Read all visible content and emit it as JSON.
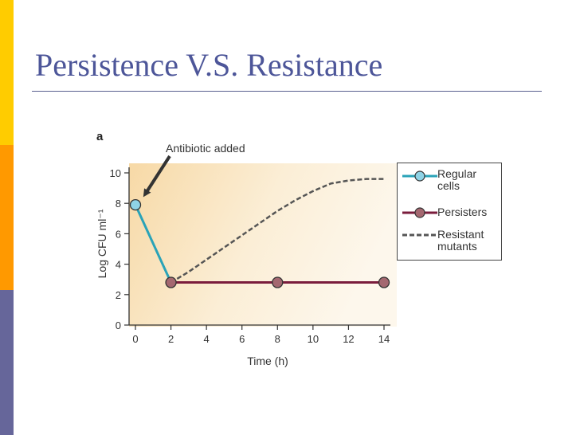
{
  "slide": {
    "title": "Persistence V.S. Resistance",
    "accent_colors": [
      "#ffcc00",
      "#ff9900",
      "#66669a"
    ]
  },
  "chart_data": {
    "type": "line",
    "panel_label": "a",
    "annotation": "Antibiotic added",
    "xlabel": "Time (h)",
    "ylabel": "Log CFU ml⁻¹",
    "xlim": [
      0,
      14
    ],
    "ylim": [
      0,
      10
    ],
    "x_ticks": [
      "0",
      "2",
      "4",
      "6",
      "8",
      "10",
      "12",
      "14"
    ],
    "y_ticks": [
      "0",
      "2",
      "4",
      "6",
      "8",
      "10"
    ],
    "grid": false,
    "legend_position": "right",
    "series": [
      {
        "name": "Regular cells",
        "style": "solid-marker",
        "color": "#2aa3b8",
        "marker_color": "#8fd3e6",
        "x": [
          0,
          2
        ],
        "y": [
          7.9,
          2.8
        ]
      },
      {
        "name": "Persisters",
        "style": "solid-marker",
        "color": "#7a1c3c",
        "marker_color": "#a46870",
        "x": [
          2,
          8,
          14
        ],
        "y": [
          2.8,
          2.8,
          2.8
        ]
      },
      {
        "name": "Resistant mutants",
        "style": "dashed",
        "color": "#555555",
        "x": [
          2,
          3,
          4,
          5,
          6,
          7,
          8,
          9,
          10,
          11,
          12,
          13,
          14
        ],
        "y": [
          2.8,
          3.5,
          4.3,
          5.1,
          5.9,
          6.7,
          7.5,
          8.2,
          8.8,
          9.3,
          9.5,
          9.6,
          9.6
        ]
      }
    ]
  }
}
